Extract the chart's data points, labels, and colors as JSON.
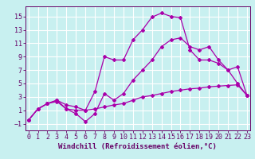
{
  "title": "",
  "xlabel": "Windchill (Refroidissement éolien,°C)",
  "bg_color": "#c8f0f0",
  "line_color": "#aa00aa",
  "grid_color": "#ffffff",
  "xlim": [
    -0.3,
    23.3
  ],
  "ylim": [
    -2.0,
    16.5
  ],
  "xticks": [
    0,
    1,
    2,
    3,
    4,
    5,
    6,
    7,
    8,
    9,
    10,
    11,
    12,
    13,
    14,
    15,
    16,
    17,
    18,
    19,
    20,
    21,
    22,
    23
  ],
  "yticks": [
    -1,
    1,
    3,
    5,
    7,
    9,
    11,
    13,
    15
  ],
  "line1_x": [
    0,
    1,
    2,
    3,
    4,
    5,
    6,
    7,
    8,
    9,
    10,
    11,
    12,
    13,
    14,
    15,
    16,
    17,
    18,
    19,
    20,
    21,
    22,
    23
  ],
  "line1_y": [
    -0.5,
    1.2,
    2.0,
    2.3,
    1.2,
    1.0,
    1.0,
    3.8,
    9.0,
    8.5,
    8.5,
    11.5,
    13.0,
    14.9,
    15.5,
    15.0,
    14.8,
    10.0,
    8.5,
    8.5,
    8.0,
    7.0,
    5.0,
    3.2
  ],
  "line2_x": [
    0,
    1,
    2,
    3,
    4,
    5,
    6,
    7,
    8,
    9,
    10,
    11,
    12,
    13,
    14,
    15,
    16,
    17,
    18,
    19,
    20,
    21,
    22,
    23
  ],
  "line2_y": [
    -0.5,
    1.2,
    2.0,
    2.5,
    1.2,
    0.5,
    -0.7,
    0.5,
    3.5,
    2.5,
    3.5,
    5.5,
    7.0,
    8.5,
    10.5,
    11.5,
    11.8,
    10.5,
    10.0,
    10.5,
    8.5,
    7.0,
    7.5,
    3.2
  ],
  "line3_x": [
    0,
    1,
    2,
    3,
    4,
    5,
    6,
    7,
    8,
    9,
    10,
    11,
    12,
    13,
    14,
    15,
    16,
    17,
    18,
    19,
    20,
    21,
    22,
    23
  ],
  "line3_y": [
    -0.5,
    1.2,
    2.0,
    2.5,
    1.8,
    1.5,
    1.0,
    1.2,
    1.5,
    1.8,
    2.0,
    2.5,
    3.0,
    3.2,
    3.5,
    3.8,
    4.0,
    4.2,
    4.3,
    4.5,
    4.6,
    4.7,
    4.8,
    3.2
  ],
  "xlabel_fontsize": 6.5,
  "tick_fontsize": 6.0,
  "marker": "D",
  "markersize": 2.0,
  "linewidth": 0.9
}
